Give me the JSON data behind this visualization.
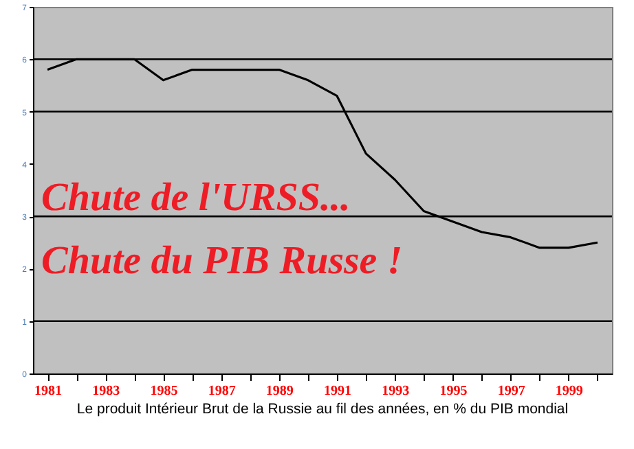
{
  "chart_data": {
    "type": "line",
    "categories": [
      "1981",
      null,
      "1983",
      null,
      "1985",
      null,
      "1987",
      null,
      "1989",
      null,
      "1991",
      null,
      "1993",
      null,
      "1995",
      null,
      "1997",
      null,
      "1999",
      null
    ],
    "series": [
      {
        "color": "#000000",
        "values": [
          5.8,
          6.0,
          6.0,
          6.0,
          5.6,
          5.8,
          5.8,
          5.8,
          5.8,
          5.6,
          5.3,
          4.2,
          3.7,
          3.1,
          2.9,
          2.7,
          2.6,
          2.4,
          2.4,
          2.5
        ]
      }
    ],
    "ylim": [
      0,
      7
    ],
    "yticks": [
      0,
      1,
      2,
      3,
      4,
      5,
      6,
      7
    ],
    "ref_lines": [
      {
        "axis": "y",
        "value": 1,
        "color": "#000000"
      },
      {
        "axis": "y",
        "value": 3,
        "color": "#000000"
      },
      {
        "axis": "y",
        "value": 5,
        "color": "#000000"
      },
      {
        "axis": "y",
        "value": 6,
        "color": "#000000"
      }
    ],
    "annotations": [
      "Chute de l'URSS...",
      "Chute du PIB Russe !",
      "Le produit Intérieur Brut de la Russie au fil des années, en % du PIB mondial"
    ],
    "grid": false,
    "marker": "none",
    "line_style": "solid"
  }
}
